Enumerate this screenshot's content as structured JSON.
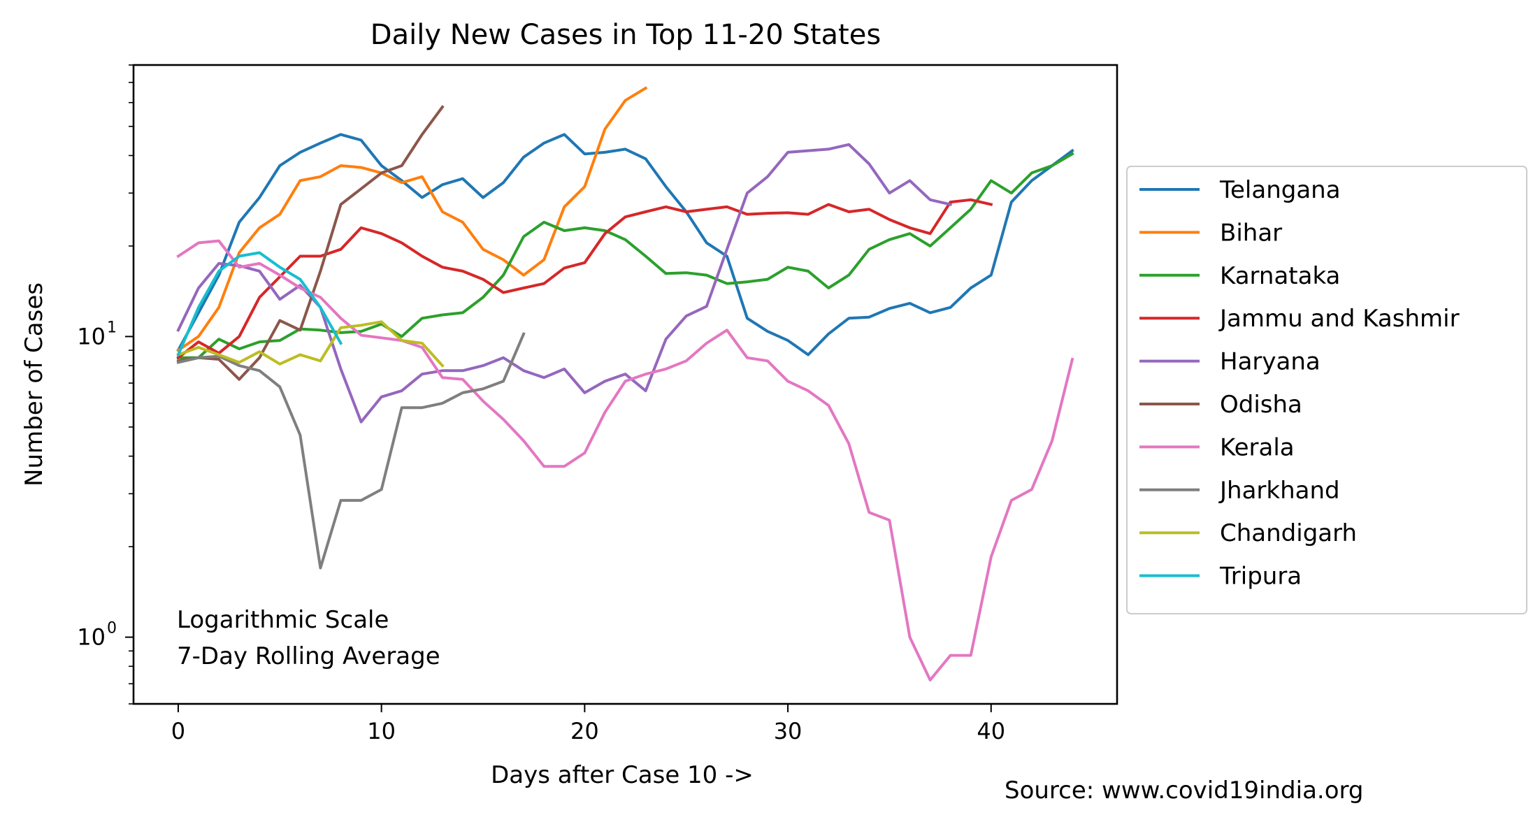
{
  "chart_data": {
    "type": "line",
    "title": "Daily New Cases in Top 11-20 States",
    "xlabel": "Days after Case 10 ->",
    "ylabel": "Number of Cases",
    "yscale": "log",
    "xlim": [
      -2.2,
      46.2
    ],
    "ylim": [
      0.6,
      80
    ],
    "x_ticks": [
      0,
      10,
      20,
      30,
      40
    ],
    "x_tick_labels": [
      "0",
      "10",
      "20",
      "30",
      "40"
    ],
    "y_ticks": [
      1,
      10
    ],
    "y_tick_labels": [
      {
        "base": "10",
        "exp": "0"
      },
      {
        "base": "10",
        "exp": "1"
      }
    ],
    "annotation_lines": [
      "Logarithmic Scale",
      "7-Day Rolling Average"
    ],
    "source": "Source: www.covid19india.org",
    "legend_position": "right",
    "grid": false,
    "series": [
      {
        "name": "Telangana",
        "color": "#1f77b4",
        "x": [
          0,
          1,
          2,
          3,
          4,
          5,
          6,
          7,
          8,
          9,
          10,
          11,
          12,
          13,
          14,
          15,
          16,
          17,
          18,
          19,
          20,
          21,
          22,
          23,
          24,
          25,
          26,
          27,
          28,
          29,
          30,
          31,
          32,
          33,
          34,
          35,
          36,
          37,
          38,
          39,
          40,
          41,
          42,
          43,
          44
        ],
        "values": [
          9,
          12,
          16,
          24,
          29,
          37,
          41,
          44,
          47,
          45,
          37,
          33,
          29,
          32,
          33.5,
          29,
          32.5,
          39.5,
          44,
          47,
          40.5,
          41,
          42,
          39,
          31.5,
          26,
          20.5,
          18.5,
          11.5,
          10.4,
          9.7,
          8.7,
          10.2,
          11.5,
          11.6,
          12.4,
          12.9,
          12,
          12.5,
          14.5,
          16,
          28,
          33,
          37,
          41.5
        ]
      },
      {
        "name": "Bihar",
        "color": "#ff7f0e",
        "x": [
          0,
          1,
          2,
          3,
          4,
          5,
          6,
          7,
          8,
          9,
          10,
          11,
          12,
          13,
          14,
          15,
          16,
          17,
          18,
          19,
          20,
          21,
          22,
          23
        ],
        "values": [
          9,
          10,
          12.5,
          19,
          23,
          25.5,
          33,
          34,
          37,
          36.5,
          35,
          32.5,
          34,
          26,
          24,
          19.5,
          18,
          16,
          18,
          27,
          31.5,
          49,
          61,
          67
        ]
      },
      {
        "name": "Karnataka",
        "color": "#2ca02c",
        "x": [
          0,
          1,
          2,
          3,
          4,
          5,
          6,
          7,
          8,
          9,
          10,
          11,
          12,
          13,
          14,
          15,
          16,
          17,
          18,
          19,
          20,
          21,
          22,
          23,
          24,
          25,
          26,
          27,
          28,
          29,
          30,
          31,
          32,
          33,
          34,
          35,
          36,
          37,
          38,
          39,
          40,
          41,
          42,
          43,
          44
        ],
        "values": [
          8.5,
          8.5,
          9.8,
          9.1,
          9.6,
          9.7,
          10.6,
          10.5,
          10.3,
          10.4,
          11,
          10,
          11.5,
          11.8,
          12,
          13.5,
          16,
          21.5,
          24,
          22.5,
          23,
          22.5,
          21,
          18.5,
          16.2,
          16.3,
          16,
          15,
          15.2,
          15.5,
          17,
          16.5,
          14.5,
          16,
          19.5,
          21,
          22,
          20,
          23,
          26.5,
          33,
          30,
          35,
          37,
          40.5
        ]
      },
      {
        "name": "Jammu and Kashmir",
        "color": "#d62728",
        "x": [
          0,
          1,
          2,
          3,
          4,
          5,
          6,
          7,
          8,
          9,
          10,
          11,
          12,
          13,
          14,
          15,
          16,
          17,
          18,
          19,
          20,
          21,
          22,
          23,
          24,
          25,
          26,
          27,
          28,
          29,
          30,
          31,
          32,
          33,
          34,
          35,
          36,
          37,
          38,
          39,
          40
        ],
        "values": [
          8.5,
          9.6,
          8.8,
          10,
          13.5,
          15.8,
          18.5,
          18.5,
          19.5,
          23,
          22,
          20.5,
          18.5,
          17,
          16.5,
          15.5,
          14,
          14.5,
          15,
          16.9,
          17.6,
          22,
          25,
          26,
          27,
          26,
          26.5,
          27,
          25.5,
          25.7,
          25.8,
          25.5,
          27.5,
          26,
          26.5,
          24.5,
          23,
          22,
          28,
          28.5,
          27.5
        ]
      },
      {
        "name": "Haryana",
        "color": "#9467bd",
        "x": [
          0,
          1,
          2,
          3,
          4,
          5,
          6,
          7,
          8,
          9,
          10,
          11,
          12,
          13,
          14,
          15,
          16,
          17,
          18,
          19,
          20,
          21,
          22,
          23,
          24,
          25,
          26,
          27,
          28,
          29,
          30,
          31,
          32,
          33,
          34,
          35,
          36,
          37,
          38
        ],
        "values": [
          10.5,
          14.5,
          17.5,
          17.2,
          16.5,
          13.3,
          14.8,
          12.5,
          7.8,
          5.2,
          6.3,
          6.6,
          7.5,
          7.7,
          7.7,
          8,
          8.5,
          7.7,
          7.3,
          7.8,
          6.5,
          7.1,
          7.5,
          6.6,
          9.8,
          11.7,
          12.6,
          19.5,
          30,
          34,
          41,
          41.5,
          42,
          43.5,
          37.5,
          30,
          33,
          28.5,
          27.5
        ]
      },
      {
        "name": "Odisha",
        "color": "#8c564b",
        "x": [
          0,
          1,
          2,
          3,
          4,
          5,
          6,
          7,
          8,
          9,
          10,
          11,
          12,
          13
        ],
        "values": [
          8.3,
          8.5,
          8.4,
          7.2,
          8.5,
          11.3,
          10.5,
          16.5,
          27.5,
          31,
          35,
          37,
          47,
          58
        ]
      },
      {
        "name": "Kerala",
        "color": "#e377c2",
        "x": [
          0,
          1,
          2,
          3,
          4,
          5,
          6,
          7,
          8,
          9,
          10,
          11,
          12,
          13,
          14,
          15,
          16,
          17,
          18,
          19,
          20,
          21,
          22,
          23,
          24,
          25,
          26,
          27,
          28,
          29,
          30,
          31,
          32,
          33,
          34,
          35,
          36,
          37,
          38,
          39,
          40,
          41,
          42,
          43,
          44
        ],
        "values": [
          18.5,
          20.5,
          20.8,
          17,
          17.5,
          16,
          14.5,
          13.5,
          11.5,
          10.1,
          9.9,
          9.7,
          9.2,
          7.3,
          7.2,
          6.1,
          5.3,
          4.5,
          3.7,
          3.7,
          4.1,
          5.6,
          7.1,
          7.5,
          7.8,
          8.3,
          9.5,
          10.5,
          8.5,
          8.3,
          7.1,
          6.6,
          5.9,
          4.4,
          2.6,
          2.45,
          1,
          0.72,
          0.87,
          0.87,
          1.85,
          2.85,
          3.1,
          4.5,
          8.4
        ]
      },
      {
        "name": "Jharkhand",
        "color": "#7f7f7f",
        "x": [
          0,
          1,
          2,
          3,
          4,
          5,
          6,
          7,
          8,
          9,
          10,
          11,
          12,
          13,
          14,
          15,
          16,
          17
        ],
        "values": [
          8.2,
          8.5,
          8.6,
          8,
          7.7,
          6.8,
          4.7,
          1.7,
          2.85,
          2.85,
          3.1,
          5.8,
          5.8,
          6,
          6.5,
          6.7,
          7.1,
          10.2
        ]
      },
      {
        "name": "Chandigarh",
        "color": "#bcbd22",
        "x": [
          0,
          1,
          2,
          3,
          4,
          5,
          6,
          7,
          8,
          9,
          10,
          11,
          12,
          13
        ],
        "values": [
          8.7,
          9.2,
          8.7,
          8.2,
          8.9,
          8.1,
          8.7,
          8.3,
          10.7,
          10.9,
          11.2,
          9.7,
          9.5,
          8
        ]
      },
      {
        "name": "Tripura",
        "color": "#17becf",
        "x": [
          0,
          1,
          2,
          3,
          4,
          5,
          6,
          7,
          8
        ],
        "values": [
          8.7,
          12.5,
          16.5,
          18.5,
          19,
          17,
          15.5,
          12.5,
          9.5
        ]
      }
    ]
  }
}
